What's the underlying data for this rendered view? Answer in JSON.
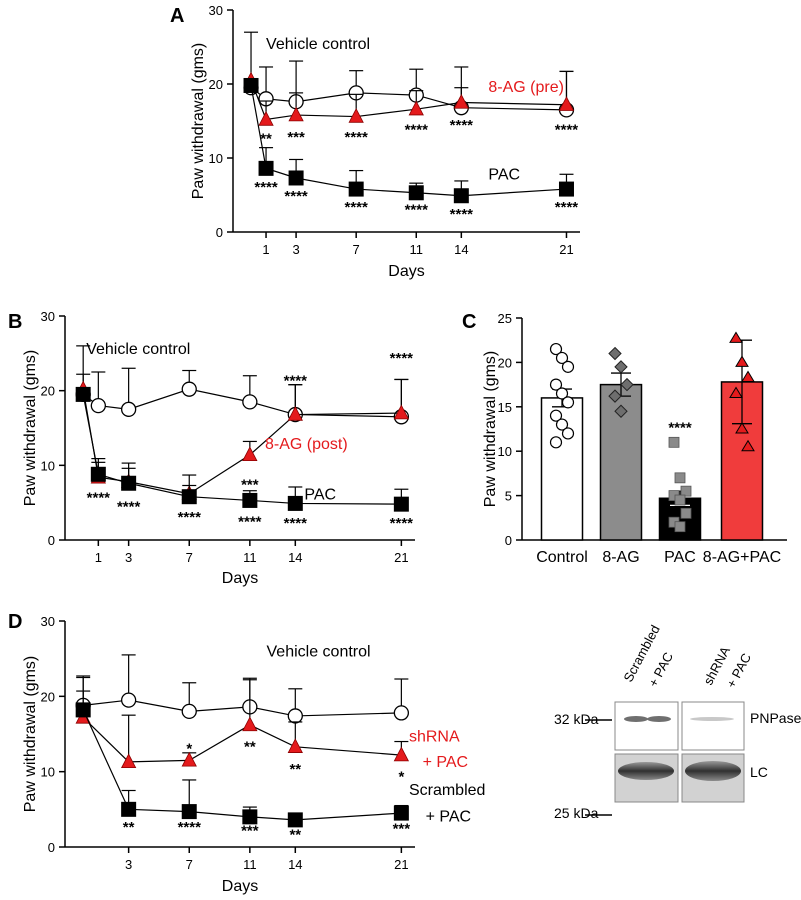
{
  "chart_data": [
    {
      "panel": "A",
      "type": "line",
      "xlabel": "Days",
      "ylabel": "Paw withdrawal (gms)",
      "ylim": [
        0,
        30
      ],
      "yticks": [
        0,
        10,
        20,
        30
      ],
      "xticks": [
        1,
        3,
        7,
        11,
        14,
        21
      ],
      "series": [
        {
          "name": "Vehicle control",
          "marker": "circle-open",
          "color": "#000000",
          "x": [
            0,
            1,
            3,
            7,
            11,
            14,
            21
          ],
          "y": [
            19.5,
            18,
            17.6,
            18.8,
            18.5,
            16.8,
            16.5
          ],
          "err": [
            0.6,
            4.3,
            5.5,
            3.0,
            3.5,
            5.5,
            5.2
          ],
          "stars": [
            "",
            "",
            "",
            "",
            "",
            "",
            ""
          ]
        },
        {
          "name": "8-AG (pre)",
          "marker": "triangle",
          "color": "#e41a1c",
          "x": [
            0,
            1,
            3,
            7,
            11,
            14,
            21
          ],
          "y": [
            20.5,
            15.2,
            15.8,
            15.6,
            16.6,
            17.5,
            17.2
          ],
          "err": [
            6.5,
            2.5,
            3.0,
            3.0,
            2.5,
            2.0,
            4.5
          ],
          "stars": [
            "",
            "",
            "",
            "",
            "",
            "",
            ""
          ]
        },
        {
          "name": "PAC",
          "marker": "square",
          "color": "#000000",
          "x": [
            0,
            1,
            3,
            7,
            11,
            14,
            21
          ],
          "y": [
            19.8,
            8.6,
            7.3,
            5.8,
            5.3,
            4.9,
            5.8
          ],
          "err": [
            0.5,
            2.8,
            2.5,
            2.5,
            1.3,
            2.0,
            2.0
          ],
          "stars": [
            "",
            "",
            "",
            "",
            "",
            "",
            ""
          ]
        }
      ],
      "star_marks": [
        {
          "x": 1,
          "text": "**",
          "y": 12.8
        },
        {
          "x": 3,
          "text": "***",
          "y": 13.0
        },
        {
          "x": 7,
          "text": "****",
          "y": 13.0
        },
        {
          "x": 11,
          "text": "****",
          "y": 14.0
        },
        {
          "x": 14,
          "text": "****",
          "y": 14.6
        },
        {
          "x": 21,
          "text": "****",
          "y": 14.0
        },
        {
          "x": 1,
          "text": "****",
          "y": 6.2
        },
        {
          "x": 3,
          "text": "****",
          "y": 5.0
        },
        {
          "x": 7,
          "text": "****",
          "y": 3.5
        },
        {
          "x": 11,
          "text": "****",
          "y": 3.2
        },
        {
          "x": 14,
          "text": "****",
          "y": 2.6
        },
        {
          "x": 21,
          "text": "****",
          "y": 3.5
        }
      ],
      "annotations": [
        {
          "text": "Vehicle control",
          "x": 1,
          "y": 24.7,
          "color": "#000000"
        },
        {
          "text": "8-AG (pre)",
          "x": 15.8,
          "y": 18.9,
          "color": "#e41a1c"
        },
        {
          "text": "PAC",
          "x": 15.8,
          "y": 7.1,
          "color": "#000000"
        }
      ]
    },
    {
      "panel": "B",
      "type": "line",
      "xlabel": "Days",
      "ylabel": "Paw withdrawal (gms)",
      "ylim": [
        0,
        30
      ],
      "yticks": [
        0,
        10,
        20,
        30
      ],
      "xticks": [
        1,
        3,
        7,
        11,
        14,
        21
      ],
      "series": [
        {
          "name": "Vehicle control",
          "marker": "circle-open",
          "color": "#000000",
          "x": [
            0,
            1,
            3,
            7,
            11,
            14,
            21
          ],
          "y": [
            19.5,
            18,
            17.5,
            20.2,
            18.5,
            16.8,
            16.5
          ],
          "err": [
            6.5,
            4.5,
            5.5,
            2.5,
            3.5,
            4.0,
            5.0
          ],
          "stars": [
            "",
            "",
            "",
            "",
            "",
            "",
            ""
          ]
        },
        {
          "name": "8-AG (post)",
          "marker": "triangle",
          "color": "#e41a1c",
          "x": [
            0,
            1,
            3,
            7,
            11,
            14,
            21
          ],
          "y": [
            20.2,
            8.4,
            7.8,
            6.2,
            11.4,
            16.8,
            17.0
          ],
          "err": [
            2.0,
            2.5,
            2.5,
            2.5,
            1.8,
            4.0,
            4.5
          ],
          "stars": [
            "",
            "",
            "",
            "",
            "",
            "",
            ""
          ]
        },
        {
          "name": "PAC",
          "marker": "square",
          "color": "#000000",
          "x": [
            0,
            1,
            3,
            7,
            11,
            14,
            21
          ],
          "y": [
            19.5,
            8.8,
            7.6,
            5.8,
            5.3,
            4.9,
            4.8
          ],
          "err": [
            0.6,
            1.6,
            2.0,
            1.5,
            1.3,
            2.2,
            2.0
          ],
          "stars": [
            "",
            "",
            "",
            "",
            "",
            "",
            ""
          ]
        }
      ],
      "star_marks": [
        {
          "x": 11,
          "text": "***",
          "y": 7.6
        },
        {
          "x": 14,
          "text": "****",
          "y": 21.5
        },
        {
          "x": 21,
          "text": "****",
          "y": 24.5
        },
        {
          "x": 1,
          "text": "****",
          "y": 5.8
        },
        {
          "x": 3,
          "text": "****",
          "y": 4.6
        },
        {
          "x": 7,
          "text": "****",
          "y": 3.2
        },
        {
          "x": 11,
          "text": "****",
          "y": 2.6
        },
        {
          "x": 14,
          "text": "****",
          "y": 2.4
        },
        {
          "x": 21,
          "text": "****",
          "y": 2.4
        }
      ],
      "annotations": [
        {
          "text": "Vehicle control",
          "x": 0.2,
          "y": 24.9,
          "color": "#000000"
        },
        {
          "text": "8-AG (post)",
          "x": 12.0,
          "y": 12.2,
          "color": "#e41a1c"
        },
        {
          "text": "PAC",
          "x": 14.6,
          "y": 5.4,
          "color": "#000000"
        }
      ]
    },
    {
      "panel": "C",
      "type": "bar",
      "ylabel": "Paw withdrawal (gms)",
      "ylim": [
        0,
        25
      ],
      "yticks": [
        0,
        5,
        10,
        15,
        20,
        25
      ],
      "categories": [
        "Control",
        "8-AG",
        "PAC",
        "8-AG+PAC"
      ],
      "values": [
        16,
        17.5,
        4.7,
        17.8
      ],
      "sem": [
        1.0,
        1.3,
        0.8,
        4.7
      ],
      "bar_colors": [
        "#ffffff",
        "#8c8c8c",
        "#000000",
        "#f03c3c"
      ],
      "point_markers": [
        "circle-open",
        "diamond",
        "square",
        "triangle"
      ],
      "points": [
        [
          21.5,
          20.5,
          19.5,
          17.5,
          16.5,
          15.5,
          14,
          13,
          12,
          11
        ],
        [
          21,
          19.5,
          17.5,
          16.2,
          14.5
        ],
        [
          11,
          7,
          5.5,
          5,
          4.5,
          3,
          2,
          1.5
        ],
        [
          22.7,
          20,
          18.3,
          16.5,
          12.5,
          10.5
        ]
      ],
      "star_marks": [
        {
          "category": "PAC",
          "text": "****",
          "y": 12.8
        }
      ]
    },
    {
      "panel": "D",
      "type": "line",
      "xlabel": "Days",
      "ylabel": "Paw withdrawal (gms)",
      "ylim": [
        0,
        30
      ],
      "yticks": [
        0,
        10,
        20,
        30
      ],
      "xticks": [
        3,
        7,
        11,
        14,
        21
      ],
      "series": [
        {
          "name": "Vehicle control",
          "marker": "circle-open",
          "color": "#000000",
          "x": [
            0,
            3,
            7,
            11,
            14,
            21
          ],
          "y": [
            18.8,
            19.5,
            18,
            18.6,
            17.4,
            17.8
          ],
          "err": [
            3.7,
            6.0,
            3.8,
            3.8,
            3.6,
            4.5
          ],
          "stars": [
            "",
            "",
            "",
            "",
            "",
            ""
          ]
        },
        {
          "name": "shRNA + PAC",
          "marker": "triangle",
          "color": "#e41a1c",
          "x": [
            0,
            3,
            7,
            11,
            14,
            21
          ],
          "y": [
            17.2,
            11.3,
            11.5,
            16.2,
            13.3,
            12.2
          ],
          "err": [
            5.5,
            6.2,
            1.0,
            6.0,
            3.3,
            1.8
          ],
          "stars": [
            "",
            "",
            "",
            "",
            "",
            ""
          ]
        },
        {
          "name": "Scrambled + PAC",
          "marker": "square",
          "color": "#000000",
          "x": [
            0,
            3,
            7,
            11,
            14,
            21
          ],
          "y": [
            18.2,
            5.0,
            4.7,
            4.0,
            3.6,
            4.5
          ],
          "err": [
            2.5,
            2.5,
            4.2,
            1.3,
            0.5,
            1.0
          ],
          "stars": [
            "",
            "",
            "",
            "",
            "",
            ""
          ]
        }
      ],
      "star_marks": [
        {
          "x": 7,
          "text": "*",
          "y": 13.2
        },
        {
          "x": 11,
          "text": "**",
          "y": 13.5
        },
        {
          "x": 14,
          "text": "**",
          "y": 10.5
        },
        {
          "x": 21,
          "text": "*",
          "y": 9.5
        },
        {
          "x": 3,
          "text": "**",
          "y": 2.8
        },
        {
          "x": 7,
          "text": "****",
          "y": 2.8
        },
        {
          "x": 11,
          "text": "***",
          "y": 2.3
        },
        {
          "x": 14,
          "text": "**",
          "y": 1.8
        },
        {
          "x": 21,
          "text": "***",
          "y": 2.6
        }
      ],
      "annotations": [
        {
          "text": "Vehicle control",
          "x": 12.1,
          "y": 25.3,
          "color": "#000000"
        },
        {
          "text": "shRNA",
          "x": 21.5,
          "y": 14.0,
          "color": "#e41a1c"
        },
        {
          "text": "+ PAC",
          "x": 22.4,
          "y": 10.6,
          "color": "#e41a1c"
        },
        {
          "text": "Scrambled",
          "x": 21.5,
          "y": 6.9,
          "color": "#000000"
        },
        {
          "text": "+ PAC",
          "x": 22.6,
          "y": 3.4,
          "color": "#000000"
        }
      ]
    }
  ],
  "panel_labels": [
    "A",
    "B",
    "C",
    "D"
  ],
  "blot": {
    "lane_labels": [
      {
        "line1": "Scrambled",
        "line2": "+ PAC"
      },
      {
        "line1": "shRNA",
        "line2": "+ PAC"
      }
    ],
    "mw_markers": [
      "32 kDa",
      "25 kDa"
    ],
    "band_labels": [
      "PNPase",
      "LC"
    ]
  }
}
